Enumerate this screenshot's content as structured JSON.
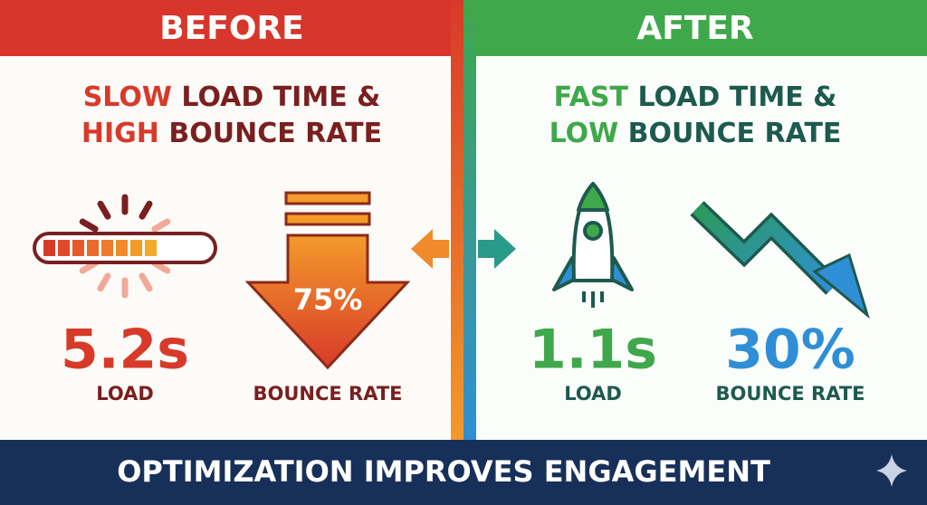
{
  "before": {
    "title": "BEFORE",
    "headline": {
      "line1": [
        "SLOW",
        "LOAD TIME &"
      ],
      "line2": [
        "HIGH",
        "BOUNCE RATE"
      ]
    },
    "load": {
      "value": "5.2s",
      "label": "LOAD"
    },
    "bounce": {
      "value": "75%",
      "label": "BOUNCE RATE"
    }
  },
  "after": {
    "title": "AFTER",
    "headline": {
      "line1": [
        "FAST",
        "LOAD TIME &"
      ],
      "line2": [
        "LOW",
        "BOUNCE RATE"
      ]
    },
    "load": {
      "value": "1.1s",
      "label": "LOAD"
    },
    "bounce": {
      "value": "30%",
      "label": "BOUNCE RATE"
    }
  },
  "footer": {
    "text": "OPTIMIZATION IMPROVES ENGAGEMENT"
  }
}
